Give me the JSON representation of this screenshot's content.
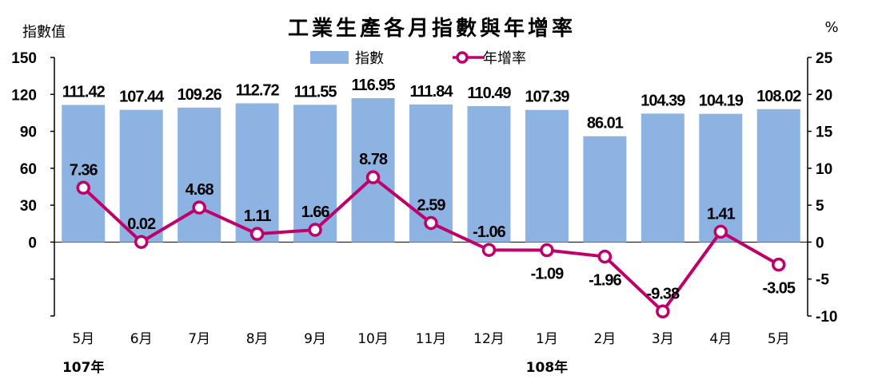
{
  "chart_data": {
    "type": "bar",
    "title": "工業生產各月指數與年增率",
    "left_axis_label": "指數值",
    "right_axis_label": "%",
    "categories": [
      "5月",
      "6月",
      "7月",
      "8月",
      "9月",
      "10月",
      "11月",
      "12月",
      "1月",
      "2月",
      "3月",
      "4月",
      "5月"
    ],
    "year_labels": [
      {
        "label": "107年",
        "category_index": 0
      },
      {
        "label": "108年",
        "category_index": 8
      }
    ],
    "left_ticks": [
      "150",
      "120",
      "90",
      "60",
      "30",
      "0"
    ],
    "right_ticks": [
      "25",
      "20",
      "15",
      "10",
      "5",
      "0",
      "-5",
      "-10"
    ],
    "ylim_left": [
      -60,
      150
    ],
    "ylim_right": [
      -10,
      25
    ],
    "grid": false,
    "legend_position": "top-center",
    "series": [
      {
        "name": "指數",
        "type": "bar",
        "axis": "left",
        "color": "#8db3e2",
        "values": [
          111.42,
          107.44,
          109.26,
          112.72,
          111.55,
          116.95,
          111.84,
          110.49,
          107.39,
          86.01,
          104.39,
          104.19,
          108.02
        ],
        "labels": [
          "111.42",
          "107.44",
          "109.26",
          "112.72",
          "111.55",
          "116.95",
          "111.84",
          "110.49",
          "107.39",
          "86.01",
          "104.39",
          "104.19",
          "108.02"
        ]
      },
      {
        "name": "年增率",
        "type": "line",
        "axis": "right",
        "color": "#c0006a",
        "values": [
          7.36,
          0.02,
          4.68,
          1.11,
          1.66,
          8.78,
          2.59,
          -1.06,
          -1.09,
          -1.96,
          -9.38,
          1.41,
          -3.05
        ],
        "labels": [
          "7.36",
          "0.02",
          "4.68",
          "1.11",
          "1.66",
          "8.78",
          "2.59",
          "-1.06",
          "-1.09",
          "-1.96",
          "-9.38",
          "1.41",
          "-3.05"
        ],
        "label_position": [
          "above",
          "above",
          "above",
          "above",
          "above",
          "above",
          "above",
          "above",
          "below",
          "below",
          "above",
          "above",
          "below"
        ]
      }
    ]
  }
}
